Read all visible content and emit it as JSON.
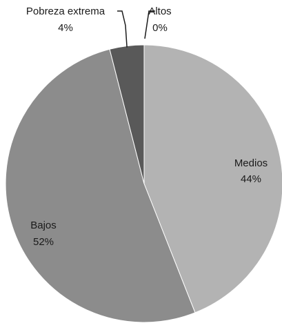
{
  "chart_data": {
    "type": "pie",
    "title": "",
    "start_angle_deg": 0,
    "direction": "clockwise",
    "slices": [
      {
        "label": "Altos",
        "value": 0,
        "value_label": "0%",
        "color": "#e0e0e0",
        "label_position": "outside"
      },
      {
        "label": "Medios",
        "value": 44,
        "value_label": "44%",
        "color": "#b3b3b3",
        "label_position": "inside"
      },
      {
        "label": "Bajos",
        "value": 52,
        "value_label": "52%",
        "color": "#8c8c8c",
        "label_position": "inside"
      },
      {
        "label": "Pobreza extrema",
        "value": 4,
        "value_label": "4%",
        "color": "#595959",
        "label_position": "outside"
      }
    ],
    "legend": "none"
  }
}
